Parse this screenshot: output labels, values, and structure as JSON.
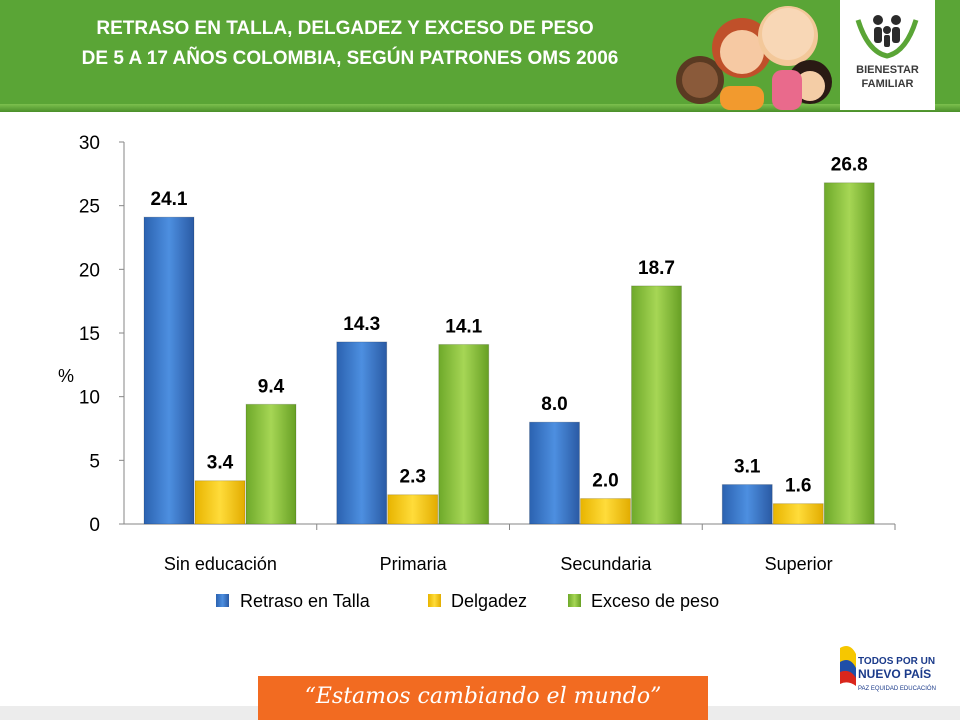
{
  "header": {
    "title_line1": "RETRASO EN TALLA, DELGADEZ  Y EXCESO DE PESO",
    "title_line2": "DE 5 A 17 AÑOS COLOMBIA, SEGÚN PATRONES OMS 2006",
    "logo_line1": "BIENESTAR",
    "logo_line2": "FAMILIAR"
  },
  "footer": {
    "slogan": "“Estamos cambiando el mundo”",
    "gov_line1": "TODOS POR UN",
    "gov_line2": "NUEVO PAÍS",
    "gov_line3": "PAZ  EQUIDAD  EDUCACIÓN"
  },
  "colors": {
    "header_green": "#5aa536",
    "series_blue": "#3f7fd0",
    "series_yellow": "#ffd21f",
    "series_green": "#8fc63c",
    "footer_orange": "#f26b21"
  },
  "chart_data": {
    "type": "bar",
    "categories": [
      "Sin educación",
      "Primaria",
      "Secundaria",
      "Superior"
    ],
    "series": [
      {
        "name": "Retraso en Talla",
        "values": [
          24.1,
          14.3,
          8.0,
          3.1
        ],
        "labels": [
          "24.1",
          "14.3",
          "8.0",
          "3.1"
        ],
        "color": "#3f7fd0"
      },
      {
        "name": "Delgadez",
        "values": [
          3.4,
          2.3,
          2.0,
          1.6
        ],
        "labels": [
          "3.4",
          "2.3",
          "2.0",
          "1.6"
        ],
        "color": "#ffd21f"
      },
      {
        "name": "Exceso de peso",
        "values": [
          9.4,
          14.1,
          18.7,
          26.8
        ],
        "labels": [
          "9.4",
          "14.1",
          "18.7",
          "26.8"
        ],
        "color": "#8fc63c"
      }
    ],
    "ylabel": "%",
    "ylim": [
      0,
      30
    ],
    "yticks": [
      "0",
      "5",
      "10",
      "15",
      "20",
      "25",
      "30"
    ],
    "grid": false,
    "legend": "bottom"
  }
}
